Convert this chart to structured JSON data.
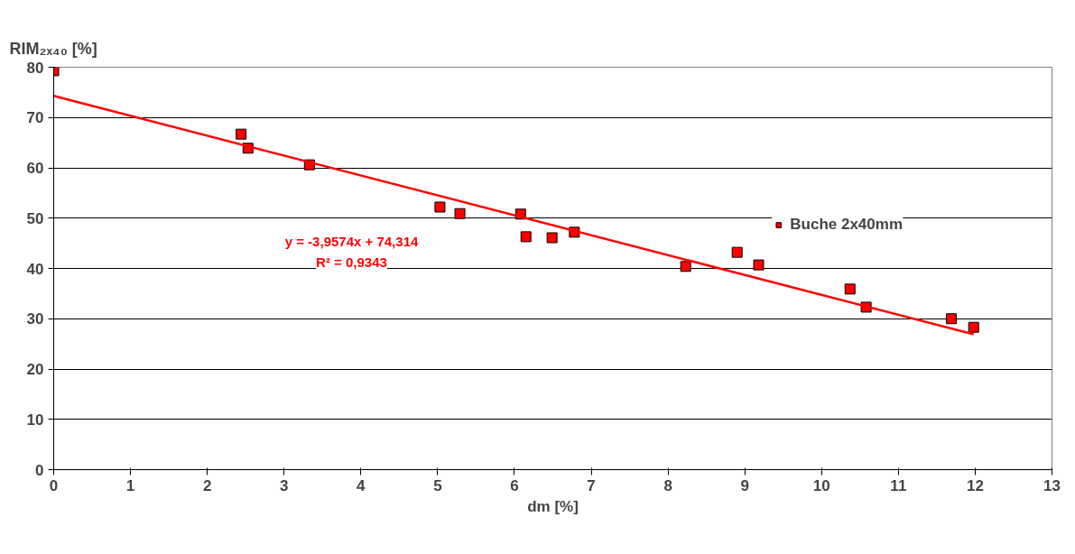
{
  "chart_data": {
    "type": "scatter",
    "xlabel": "dm [%]",
    "ylabel": "RIM₂ₓ₄₀ [%]",
    "xlim": [
      0,
      13
    ],
    "xticks": [
      0,
      1,
      2,
      3,
      4,
      5,
      6,
      7,
      8,
      9,
      10,
      11,
      12,
      13
    ],
    "ylim": [
      0,
      80
    ],
    "yticks": [
      0,
      10,
      20,
      30,
      40,
      50,
      60,
      70,
      80
    ],
    "grid": "y",
    "legend": "top right",
    "marker": "square",
    "annotations": [
      "y = -3,9574x + 74,314",
      "R² = 0,9343"
    ],
    "series": [
      {
        "name": "Buche 2x40mm",
        "color": "#ff0000",
        "x": [
          0,
          2.44,
          2.53,
          3.33,
          5.03,
          5.29,
          6.08,
          6.15,
          6.49,
          6.78,
          8.23,
          8.9,
          9.18,
          10.37,
          10.58,
          11.69,
          11.98
        ],
        "values": [
          79.3,
          66.7,
          63.9,
          60.6,
          52.2,
          50.9,
          50.8,
          46.3,
          46.1,
          47.2,
          40.4,
          43.2,
          40.7,
          35.9,
          32.3,
          30.0,
          28.3
        ]
      },
      {
        "type": "line",
        "marker": "none",
        "color": "#ff0000",
        "x": [
          0,
          11.98
        ],
        "values": [
          74.3,
          26.9
        ]
      }
    ]
  }
}
